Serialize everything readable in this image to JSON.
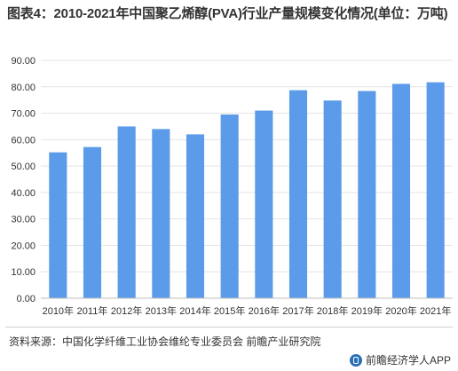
{
  "title": "图表4：2010-2021年中国聚乙烯醇(PVA)行业产量规模变化情况(单位：万吨)",
  "source": "资料来源：中国化学纤维工业协会维纶专业委员会 前瞻产业研究院",
  "brand": {
    "name": "前瞻经济学人APP",
    "logo_icon": "qianzhan-logo-icon"
  },
  "colors": {
    "bar": "#5b9bea",
    "grid": "#e4e4e4",
    "axis": "#bfbfbf",
    "text": "#333333"
  },
  "chart_data": {
    "type": "bar",
    "title": "",
    "xlabel": "",
    "ylabel": "",
    "categories": [
      "2010年",
      "2011年",
      "2012年",
      "2013年",
      "2014年",
      "2015年",
      "2016年",
      "2017年",
      "2018年",
      "2019年",
      "2020年",
      "2021年"
    ],
    "values": [
      55.2,
      57.2,
      65.0,
      64.0,
      62.0,
      69.5,
      71.0,
      78.7,
      74.8,
      78.4,
      81.1,
      81.7
    ],
    "ylim": [
      0,
      90
    ],
    "yticks": [
      "0.00",
      "10.00",
      "20.00",
      "30.00",
      "40.00",
      "50.00",
      "60.00",
      "70.00",
      "80.00",
      "90.00"
    ],
    "grid": true,
    "legend": "none"
  }
}
